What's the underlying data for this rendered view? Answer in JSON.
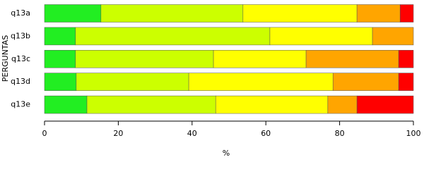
{
  "chart_data": {
    "type": "stacked-bar-horizontal",
    "x_label": "%",
    "y_label": "PERGUNTAS",
    "categories": [
      "q13a",
      "q13b",
      "q13c",
      "q13d",
      "q13e"
    ],
    "series": [
      {
        "color": "#22ee22",
        "values": [
          15.3,
          8.4,
          8.4,
          8.6,
          11.5
        ]
      },
      {
        "color": "#ccff00",
        "values": [
          38.5,
          52.7,
          37.4,
          30.5,
          34.9
        ]
      },
      {
        "color": "#ffff00",
        "values": [
          30.9,
          27.8,
          25.1,
          39.1,
          30.4
        ]
      },
      {
        "color": "#ffa500",
        "values": [
          11.7,
          11.1,
          25.1,
          17.8,
          7.9
        ]
      },
      {
        "color": "#ff0000",
        "values": [
          3.6,
          0,
          4.0,
          4.0,
          15.3
        ]
      }
    ],
    "xlim": [
      0,
      100
    ],
    "xticks": [
      0,
      20,
      40,
      60,
      80,
      100
    ]
  }
}
